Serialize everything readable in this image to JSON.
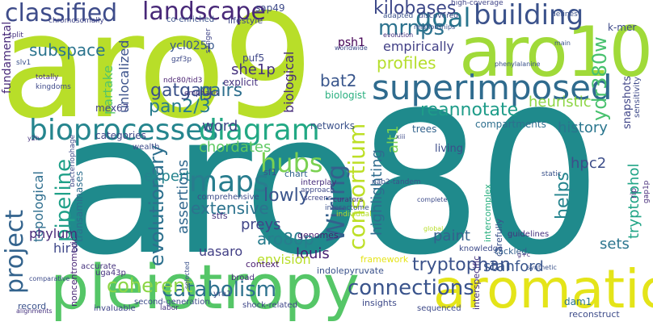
{
  "words": [
    {
      "text": "aro80",
      "color": "#1f8a8c"
    },
    {
      "text": "aro9",
      "color": "#b8de29"
    },
    {
      "text": "pleiotropy",
      "color": "#55c667"
    },
    {
      "text": "aro10",
      "color": "#a0da39"
    },
    {
      "text": "aromatic",
      "color": "#e4e419"
    },
    {
      "text": "superimposed",
      "color": "#2f6b8e"
    },
    {
      "text": "bioprocesses",
      "color": "#25858e"
    },
    {
      "text": "diagram",
      "color": "#22a884"
    },
    {
      "text": "classified",
      "color": "#3e4c8a"
    },
    {
      "text": "landscape",
      "color": "#482878"
    },
    {
      "text": "building",
      "color": "#3b528b"
    },
    {
      "text": "goal",
      "color": "#2a768e"
    },
    {
      "text": "kilobases",
      "color": "#3e4989"
    },
    {
      "text": "mrnps",
      "color": "#2c728e"
    },
    {
      "text": "empirically",
      "color": "#424086"
    },
    {
      "text": "profiles",
      "color": "#b5de2b"
    },
    {
      "text": "ungapped",
      "color": "#c8e020"
    },
    {
      "text": "ydr380w",
      "color": "#48c16e"
    },
    {
      "text": "Wiring",
      "color": "#34608d"
    },
    {
      "text": "consortium",
      "color": "#bddf26"
    },
    {
      "text": "maps",
      "color": "#287d8e"
    },
    {
      "text": "hubs",
      "color": "#7ad151"
    },
    {
      "text": "catabolism",
      "color": "#2d718e"
    },
    {
      "text": "connections",
      "color": "#3a548c"
    },
    {
      "text": "project",
      "color": "#33638d"
    },
    {
      "text": "topological",
      "color": "#2e6e8e"
    },
    {
      "text": "pipeline",
      "color": "#1fa088"
    },
    {
      "text": "coherent",
      "color": "#8bd646"
    },
    {
      "text": "word",
      "color": "#3f4788"
    },
    {
      "text": "pan2/3",
      "color": "#287c8e"
    },
    {
      "text": "gatgag",
      "color": "#3b528b"
    },
    {
      "text": "pairs",
      "color": "#2e6f8e"
    },
    {
      "text": "she1p",
      "color": "#46337e"
    },
    {
      "text": "bat2",
      "color": "#39568c"
    },
    {
      "text": "reannotate",
      "color": "#1e9c89"
    },
    {
      "text": "heuristic",
      "color": "#8ed645"
    },
    {
      "text": "ydr421w",
      "color": "#a2da37"
    },
    {
      "text": "history",
      "color": "#2a768e"
    },
    {
      "text": "tryptophan",
      "color": "#3b528b"
    },
    {
      "text": "stanford",
      "color": "#39568c"
    },
    {
      "text": "sets",
      "color": "#2b758e"
    },
    {
      "text": "tryptophol",
      "color": "#20a486"
    },
    {
      "text": "hpc2",
      "color": "#3d4e8a"
    },
    {
      "text": "helps",
      "color": "#25848e"
    },
    {
      "text": "paint",
      "color": "#34618d"
    },
    {
      "text": "aro80p",
      "color": "#287d8e"
    },
    {
      "text": "louis",
      "color": "#482173"
    },
    {
      "text": "extensive",
      "color": "#2c738e"
    },
    {
      "text": "lowly",
      "color": "#3a548c"
    },
    {
      "text": "evolutionary",
      "color": "#2d708e"
    },
    {
      "text": "assertions",
      "color": "#31688e"
    },
    {
      "text": "expert",
      "color": "#25838e"
    },
    {
      "text": "preys",
      "color": "#404588"
    },
    {
      "text": "uasaro",
      "color": "#423f85"
    },
    {
      "text": "hir3",
      "color": "#3f4889"
    },
    {
      "text": "wap1p",
      "color": "#46327e"
    },
    {
      "text": "phylum",
      "color": "#482878"
    },
    {
      "text": "subspace",
      "color": "#2b748e"
    },
    {
      "text": "partake",
      "color": "#54c568"
    },
    {
      "text": "unlocalized",
      "color": "#3b528b"
    },
    {
      "text": "biological",
      "color": "#472c7a"
    },
    {
      "text": "chordates",
      "color": "#5ec962"
    },
    {
      "text": "highlighting",
      "color": "#2f6c8e"
    },
    {
      "text": "alt1",
      "color": "#7ad151"
    },
    {
      "text": "envision",
      "color": "#b8de29"
    },
    {
      "text": "psh1",
      "color": "#440154"
    },
    {
      "text": "ycl025p",
      "color": "#38588c"
    },
    {
      "text": "sap49",
      "color": "#3e4a89"
    },
    {
      "text": "puf5",
      "color": "#3f4788"
    },
    {
      "text": "mex67",
      "color": "#414487"
    },
    {
      "text": "biologist",
      "color": "#29af7f"
    },
    {
      "text": "explicit",
      "color": "#46327e"
    },
    {
      "text": "compartments",
      "color": "#2e6f8e"
    },
    {
      "text": "k-mer",
      "color": "#3e4a89"
    },
    {
      "text": "snapshots",
      "color": "#404588"
    },
    {
      "text": "comprehensive",
      "color": "#3e4c8a"
    },
    {
      "text": "genomes",
      "color": "#481f70"
    },
    {
      "text": "stfs",
      "color": "#46327e"
    },
    {
      "text": "living",
      "color": "#3d4d8a"
    },
    {
      "text": "trees",
      "color": "#33638d"
    },
    {
      "text": "networks",
      "color": "#3b528b"
    },
    {
      "text": "unifying",
      "color": "#433e85"
    },
    {
      "text": "categories",
      "color": "#3f4788"
    },
    {
      "text": "transaminases",
      "color": "#2e6f8e"
    },
    {
      "text": "noncentromeric",
      "color": "#482576"
    },
    {
      "text": "fundamental",
      "color": "#482979"
    },
    {
      "text": "lifestyle",
      "color": "#3f4788"
    },
    {
      "text": "record",
      "color": "#3b528b"
    },
    {
      "text": "accurate",
      "color": "#46337e"
    },
    {
      "text": "broad",
      "color": "#472d7b"
    },
    {
      "text": "context",
      "color": "#481c6e"
    },
    {
      "text": "insights",
      "color": "#3e4a89"
    },
    {
      "text": "indolepyruvate",
      "color": "#3b528b"
    },
    {
      "text": "framework",
      "color": "#e5e419"
    },
    {
      "text": "knowledge",
      "color": "#3e4c8a"
    },
    {
      "text": "tackled",
      "color": "#34618d"
    },
    {
      "text": "carefully",
      "color": "#3b528b"
    },
    {
      "text": "densely",
      "color": "#3e4989"
    },
    {
      "text": "guidelines",
      "color": "#46327e"
    },
    {
      "text": "retrieving",
      "color": "#3f4788"
    },
    {
      "text": "intercomplex",
      "color": "#29af7f"
    },
    {
      "text": "interspecific",
      "color": "#46327e"
    },
    {
      "text": "sequenced",
      "color": "#3e4a89"
    },
    {
      "text": "reconstruct",
      "color": "#3e4c8a"
    },
    {
      "text": "dam1",
      "color": "#2b758e"
    },
    {
      "text": "hir2",
      "color": "#472c7a"
    },
    {
      "text": "yra1",
      "color": "#3d4d8a"
    },
    {
      "text": "labor",
      "color": "#46337e"
    },
    {
      "text": "invaluable",
      "color": "#404588"
    },
    {
      "text": "second-generation",
      "color": "#3e4c8a"
    },
    {
      "text": "shock-related",
      "color": "#3f4788"
    },
    {
      "text": "uga43p",
      "color": "#46327e"
    },
    {
      "text": "elucidate",
      "color": "#482878"
    },
    {
      "text": "sf1",
      "color": "#3b528b"
    },
    {
      "text": "chart",
      "color": "#33638d"
    },
    {
      "text": "screens",
      "color": "#404588"
    },
    {
      "text": "interactome",
      "color": "#3b528b"
    },
    {
      "text": "curators",
      "color": "#46327e"
    },
    {
      "text": "individual",
      "color": "#b5de2b"
    },
    {
      "text": "interplay",
      "color": "#472d7b"
    },
    {
      "text": "approach",
      "color": "#3e4989"
    },
    {
      "text": "catabolite",
      "color": "#3b528b"
    },
    {
      "text": "wealth",
      "color": "#3e4c8a"
    },
    {
      "text": "co-enriched",
      "color": "#3b528b"
    },
    {
      "text": "sanger",
      "color": "#404588"
    },
    {
      "text": "emphasis",
      "color": "#46327e"
    },
    {
      "text": "ndc80/tid3",
      "color": "#481f70"
    },
    {
      "text": "gzf3p",
      "color": "#3e4a89"
    },
    {
      "text": "adapted",
      "color": "#3b528b"
    },
    {
      "text": "discovered",
      "color": "#3e4c8a"
    },
    {
      "text": "high-coverage",
      "color": "#404588"
    },
    {
      "text": "defines",
      "color": "#3b528b"
    },
    {
      "text": "transaction",
      "color": "#46327e"
    },
    {
      "text": "clustering",
      "color": "#3e4989"
    },
    {
      "text": "tho-trex",
      "color": "#3b528b"
    },
    {
      "text": "annotations",
      "color": "#3e4c8a"
    },
    {
      "text": "main",
      "color": "#3b528b"
    },
    {
      "text": "semi-automated",
      "color": "#3e4a89"
    },
    {
      "text": "aminotransferase",
      "color": "#46327e"
    },
    {
      "text": "nab2-tandem",
      "color": "#3b528b"
    },
    {
      "text": "greatly",
      "color": "#3e4c8a"
    },
    {
      "text": "static",
      "color": "#3b528b"
    },
    {
      "text": "kingdoms",
      "color": "#3e4989"
    },
    {
      "text": "totally",
      "color": "#46327e"
    },
    {
      "text": "proofreads",
      "color": "#2f6c8e"
    },
    {
      "text": "chromosomally",
      "color": "#404588"
    },
    {
      "text": "split",
      "color": "#46327e"
    },
    {
      "text": "slv1",
      "color": "#3b528b"
    },
    {
      "text": "xiii",
      "color": "#3e4c8a"
    },
    {
      "text": "y2h",
      "color": "#46327e"
    },
    {
      "text": "bacteriophage",
      "color": "#3e4a89"
    },
    {
      "text": "hemiascomycete",
      "color": "#3b528b"
    },
    {
      "text": "comparative",
      "color": "#3e4c8a"
    },
    {
      "text": "alignments",
      "color": "#46327e"
    },
    {
      "text": "selected",
      "color": "#3b528b"
    },
    {
      "text": "complete",
      "color": "#3e4c8a"
    },
    {
      "text": "synthetic",
      "color": "#3b528b"
    },
    {
      "text": "g+c",
      "color": "#46327e"
    },
    {
      "text": "refractory",
      "color": "#3e4989"
    },
    {
      "text": "relationships",
      "color": "#3b528b"
    },
    {
      "text": "evolution",
      "color": "#46327e"
    },
    {
      "text": "worldwide",
      "color": "#3e4c8a"
    },
    {
      "text": "phenylalanine",
      "color": "#3b528b"
    },
    {
      "text": "sensitivity",
      "color": "#3e4a89"
    },
    {
      "text": "gap1p",
      "color": "#472d7b"
    },
    {
      "text": "rip",
      "color": "#46327e"
    },
    {
      "text": "global",
      "color": "#b8de29"
    }
  ]
}
